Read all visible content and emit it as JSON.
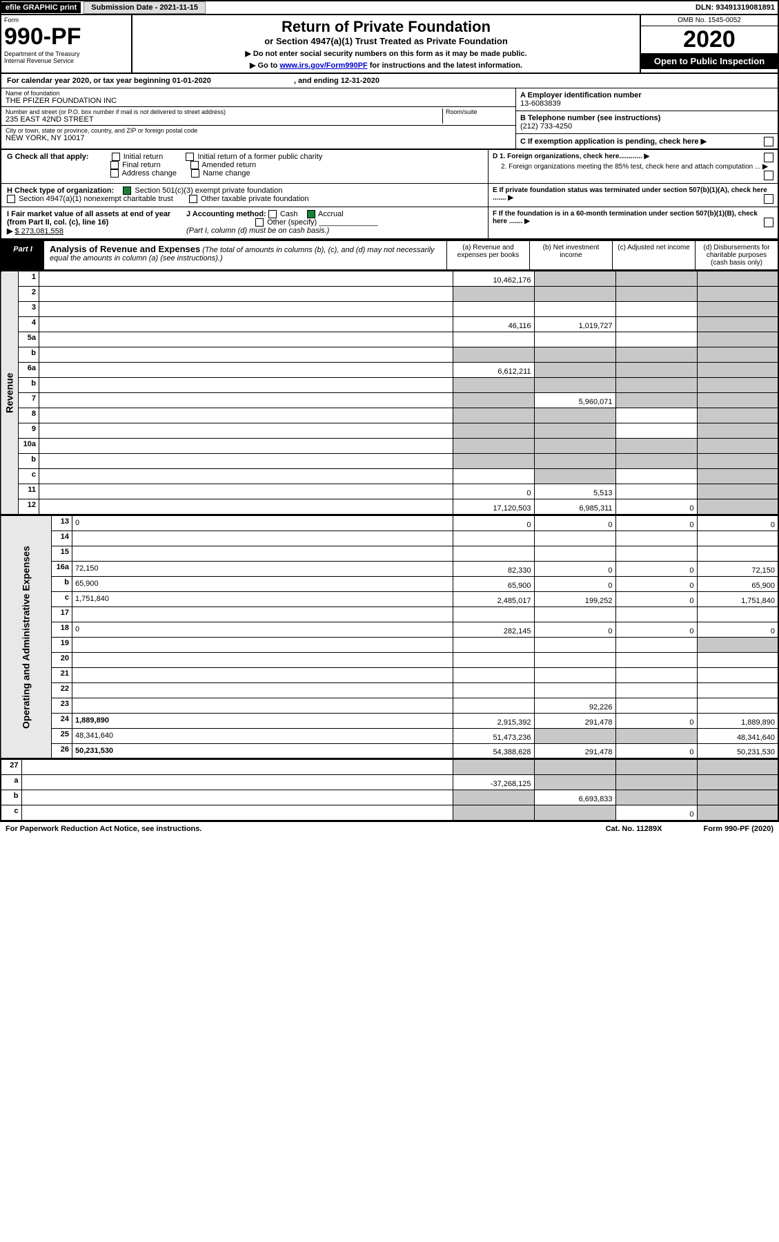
{
  "top": {
    "efile": "efile GRAPHIC print",
    "submission": "Submission Date - 2021-11-15",
    "dln": "DLN: 93491319081891"
  },
  "header": {
    "form": "Form",
    "form_num": "990-PF",
    "dept": "Department of the Treasury",
    "irs": "Internal Revenue Service",
    "title": "Return of Private Foundation",
    "subtitle": "or Section 4947(a)(1) Trust Treated as Private Foundation",
    "note1": "▶ Do not enter social security numbers on this form as it may be made public.",
    "note2_pre": "▶ Go to ",
    "note2_link": "www.irs.gov/Form990PF",
    "note2_post": " for instructions and the latest information.",
    "omb": "OMB No. 1545-0052",
    "year": "2020",
    "inspection": "Open to Public Inspection"
  },
  "calendar": {
    "pre": "For calendar year 2020, or tax year beginning 01-01-2020",
    "end": ", and ending 12-31-2020"
  },
  "entity": {
    "name_lbl": "Name of foundation",
    "name": "THE PFIZER FOUNDATION INC",
    "addr_lbl": "Number and street (or P.O. box number if mail is not delivered to street address)",
    "addr": "235 EAST 42ND STREET",
    "room_lbl": "Room/suite",
    "city_lbl": "City or town, state or province, country, and ZIP or foreign postal code",
    "city": "NEW YORK, NY  10017",
    "a_lbl": "A Employer identification number",
    "a_val": "13-6083839",
    "b_lbl": "B Telephone number (see instructions)",
    "b_val": "(212) 733-4250",
    "c_lbl": "C If exemption application is pending, check here"
  },
  "checks": {
    "g_lbl": "G Check all that apply:",
    "g_opts": [
      "Initial return",
      "Final return",
      "Address change",
      "Initial return of a former public charity",
      "Amended return",
      "Name change"
    ],
    "h_lbl": "H Check type of organization:",
    "h_opt1": "Section 501(c)(3) exempt private foundation",
    "h_opt2": "Section 4947(a)(1) nonexempt charitable trust",
    "h_opt3": "Other taxable private foundation",
    "i_lbl": "I Fair market value of all assets at end of year (from Part II, col. (c), line 16)",
    "i_val": "$  273,081,558",
    "j_lbl": "J Accounting method:",
    "j_cash": "Cash",
    "j_accrual": "Accrual",
    "j_other": "Other (specify)",
    "j_note": "(Part I, column (d) must be on cash basis.)",
    "d1": "D 1. Foreign organizations, check here............",
    "d2": "2. Foreign organizations meeting the 85% test, check here and attach computation ...",
    "e": "E  If private foundation status was terminated under section 507(b)(1)(A), check here .......",
    "f": "F  If the foundation is in a 60-month termination under section 507(b)(1)(B), check here .......",
    "arrow": "▶"
  },
  "part1": {
    "label": "Part I",
    "title": "Analysis of Revenue and Expenses",
    "note": "(The total of amounts in columns (b), (c), and (d) may not necessarily equal the amounts in column (a) (see instructions).)",
    "cols": {
      "a": "(a)   Revenue and expenses per books",
      "b": "(b)   Net investment income",
      "c": "(c)   Adjusted net income",
      "d": "(d)   Disbursements for charitable purposes (cash basis only)"
    }
  },
  "sections": {
    "revenue_label": "Revenue",
    "expense_label": "Operating and Administrative Expenses"
  },
  "rows": [
    {
      "n": "1",
      "d": "",
      "a": "10,462,176",
      "b": "",
      "c": "",
      "greyBCD": true
    },
    {
      "n": "2",
      "d": "",
      "a": "",
      "b": "",
      "c": "",
      "greyA": true,
      "greyBCD": true,
      "bold_not": true
    },
    {
      "n": "3",
      "d": "",
      "a": "",
      "b": "",
      "c": "",
      "greyD": true
    },
    {
      "n": "4",
      "d": "",
      "a": "46,116",
      "b": "1,019,727",
      "c": "",
      "greyD": true
    },
    {
      "n": "5a",
      "d": "",
      "a": "",
      "b": "",
      "c": "",
      "greyD": true
    },
    {
      "n": "b",
      "d": "",
      "a": "",
      "b": "",
      "c": "",
      "greyABCD": true
    },
    {
      "n": "6a",
      "d": "",
      "a": "6,612,211",
      "b": "",
      "c": "",
      "greyBCD": true
    },
    {
      "n": "b",
      "d": "",
      "a": "",
      "b": "",
      "c": "",
      "greyABCD": true
    },
    {
      "n": "7",
      "d": "",
      "a": "",
      "b": "5,960,071",
      "c": "",
      "greyA": true,
      "greyCD": true
    },
    {
      "n": "8",
      "d": "",
      "a": "",
      "b": "",
      "c": "",
      "greyAB": true,
      "greyD": true
    },
    {
      "n": "9",
      "d": "",
      "a": "",
      "b": "",
      "c": "",
      "greyAB": true,
      "greyD": true
    },
    {
      "n": "10a",
      "d": "",
      "a": "",
      "b": "",
      "c": "",
      "greyABCD": true
    },
    {
      "n": "b",
      "d": "",
      "a": "",
      "b": "",
      "c": "",
      "greyABCD": true
    },
    {
      "n": "c",
      "d": "",
      "a": "",
      "b": "",
      "c": "",
      "greyB": true,
      "greyD": true
    },
    {
      "n": "11",
      "d": "",
      "a": "0",
      "b": "5,513",
      "c": "",
      "greyD": true
    },
    {
      "n": "12",
      "d": "",
      "a": "17,120,503",
      "b": "6,985,311",
      "c": "0",
      "bold": true,
      "greyD": true
    }
  ],
  "exp_rows": [
    {
      "n": "13",
      "d": "0",
      "a": "0",
      "b": "0",
      "c": "0"
    },
    {
      "n": "14",
      "d": "",
      "a": "",
      "b": "",
      "c": ""
    },
    {
      "n": "15",
      "d": "",
      "a": "",
      "b": "",
      "c": ""
    },
    {
      "n": "16a",
      "d": "72,150",
      "a": "82,330",
      "b": "0",
      "c": "0"
    },
    {
      "n": "b",
      "d": "65,900",
      "a": "65,900",
      "b": "0",
      "c": "0"
    },
    {
      "n": "c",
      "d": "1,751,840",
      "a": "2,485,017",
      "b": "199,252",
      "c": "0"
    },
    {
      "n": "17",
      "d": "",
      "a": "",
      "b": "",
      "c": ""
    },
    {
      "n": "18",
      "d": "0",
      "a": "282,145",
      "b": "0",
      "c": "0"
    },
    {
      "n": "19",
      "d": "",
      "a": "",
      "b": "",
      "c": "",
      "greyD": true
    },
    {
      "n": "20",
      "d": "",
      "a": "",
      "b": "",
      "c": ""
    },
    {
      "n": "21",
      "d": "",
      "a": "",
      "b": "",
      "c": ""
    },
    {
      "n": "22",
      "d": "",
      "a": "",
      "b": "",
      "c": ""
    },
    {
      "n": "23",
      "d": "",
      "a": "",
      "b": "92,226",
      "c": ""
    },
    {
      "n": "24",
      "d": "1,889,890",
      "a": "2,915,392",
      "b": "291,478",
      "c": "0",
      "bold": true
    },
    {
      "n": "25",
      "d": "48,341,640",
      "a": "51,473,236",
      "b": "",
      "c": "",
      "greyBC": true
    },
    {
      "n": "26",
      "d": "50,231,530",
      "a": "54,388,628",
      "b": "291,478",
      "c": "0",
      "bold": true
    }
  ],
  "final_rows": [
    {
      "n": "27",
      "d": "",
      "a": "",
      "b": "",
      "c": "",
      "greyABCD": true
    },
    {
      "n": "a",
      "d": "",
      "a": "-37,268,125",
      "b": "",
      "c": "",
      "bold": true,
      "greyBCD": true
    },
    {
      "n": "b",
      "d": "",
      "a": "",
      "b": "6,693,833",
      "c": "",
      "bold": true,
      "greyA": true,
      "greyCD": true
    },
    {
      "n": "c",
      "d": "",
      "a": "",
      "b": "",
      "c": "0",
      "bold": true,
      "greyAB": true,
      "greyD": true
    }
  ],
  "footer": {
    "left": "For Paperwork Reduction Act Notice, see instructions.",
    "mid": "Cat. No. 11289X",
    "right": "Form 990-PF (2020)"
  }
}
